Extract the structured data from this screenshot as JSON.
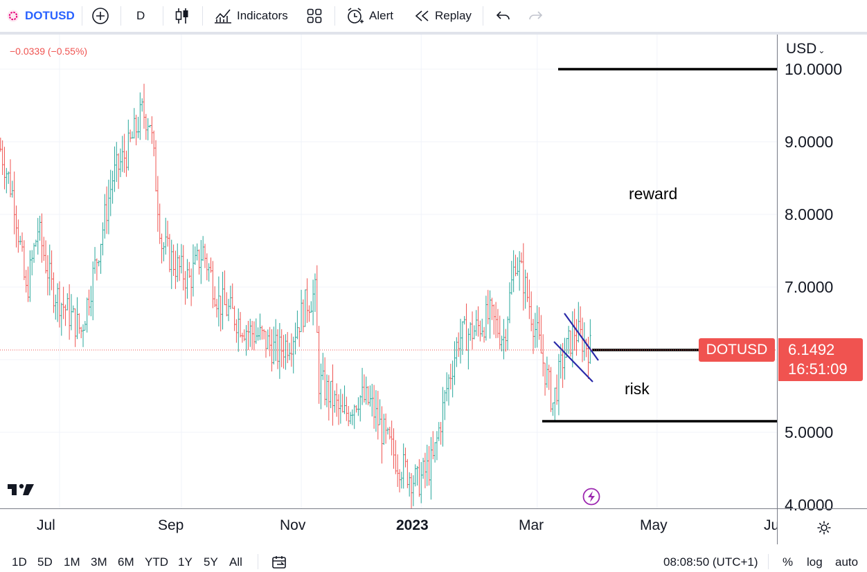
{
  "toolbar": {
    "symbol": "DOTUSD",
    "interval": "D",
    "indicators_label": "Indicators",
    "alert_label": "Alert",
    "replay_label": "Replay"
  },
  "legend": {
    "change": "−0.0339 (−0.55%)"
  },
  "price_axis": {
    "currency": "USD",
    "labels": [
      "10.0000",
      "9.0000",
      "8.0000",
      "7.0000",
      "5.0000",
      "4.0000"
    ]
  },
  "time_axis": {
    "labels": [
      "Jul",
      "Sep",
      "Nov",
      "2023",
      "Mar",
      "May",
      "Ju"
    ]
  },
  "annotations": {
    "reward": "reward",
    "risk": "risk"
  },
  "last_price": {
    "symbol": "DOTUSD",
    "price": "6.1492",
    "countdown": "16:51:09"
  },
  "bottom": {
    "ranges": [
      "1D",
      "5D",
      "1M",
      "3M",
      "6M",
      "YTD",
      "1Y",
      "5Y",
      "All"
    ],
    "time": "08:08:50 (UTC+1)",
    "percent": "%",
    "log": "log",
    "auto": "auto"
  },
  "colors": {
    "up": "#26a69a",
    "down": "#ef5350",
    "pattern": "#2929a8",
    "price_tag": "#f05350",
    "accent": "#2962ff"
  },
  "chart_data": {
    "type": "candlestick",
    "symbol": "DOTUSD",
    "interval": "1D",
    "ylim": [
      4.0,
      10.0
    ],
    "x_range": [
      "2022-06-01",
      "2023-07-01"
    ],
    "last_price": 6.1492,
    "series": [
      {
        "name": "DOTUSD",
        "knots": [
          [
            "2022-06-01",
            8.9
          ],
          [
            "2022-06-08",
            8.2
          ],
          [
            "2022-06-14",
            6.9
          ],
          [
            "2022-06-20",
            7.8
          ],
          [
            "2022-06-27",
            7.0
          ],
          [
            "2022-07-04",
            6.7
          ],
          [
            "2022-07-12",
            6.4
          ],
          [
            "2022-07-20",
            7.4
          ],
          [
            "2022-07-28",
            8.5
          ],
          [
            "2022-08-05",
            8.9
          ],
          [
            "2022-08-12",
            9.4
          ],
          [
            "2022-08-16",
            9.3
          ],
          [
            "2022-08-22",
            7.6
          ],
          [
            "2022-08-29",
            7.3
          ],
          [
            "2022-09-05",
            7.1
          ],
          [
            "2022-09-12",
            7.5
          ],
          [
            "2022-09-20",
            6.8
          ],
          [
            "2022-09-28",
            6.6
          ],
          [
            "2022-10-05",
            6.4
          ],
          [
            "2022-10-12",
            6.3
          ],
          [
            "2022-10-20",
            6.1
          ],
          [
            "2022-10-27",
            6.3
          ],
          [
            "2022-11-04",
            6.8
          ],
          [
            "2022-11-08",
            6.9
          ],
          [
            "2022-11-10",
            5.7
          ],
          [
            "2022-11-16",
            5.5
          ],
          [
            "2022-11-22",
            5.2
          ],
          [
            "2022-11-30",
            5.5
          ],
          [
            "2022-12-06",
            5.4
          ],
          [
            "2022-12-14",
            4.9
          ],
          [
            "2022-12-20",
            4.6
          ],
          [
            "2022-12-30",
            4.3
          ],
          [
            "2023-01-07",
            4.6
          ],
          [
            "2023-01-14",
            5.6
          ],
          [
            "2023-01-20",
            6.3
          ],
          [
            "2023-01-28",
            6.4
          ],
          [
            "2023-02-05",
            6.6
          ],
          [
            "2023-02-12",
            6.3
          ],
          [
            "2023-02-18",
            7.4
          ],
          [
            "2023-02-22",
            7.1
          ],
          [
            "2023-03-02",
            6.2
          ],
          [
            "2023-03-09",
            5.4
          ],
          [
            "2023-03-14",
            6.0
          ],
          [
            "2023-03-20",
            6.4
          ],
          [
            "2023-03-28",
            6.15
          ]
        ]
      }
    ],
    "drawings": {
      "target_line": 10.0,
      "entry_line": 6.15,
      "stop_line": 5.17
    }
  }
}
